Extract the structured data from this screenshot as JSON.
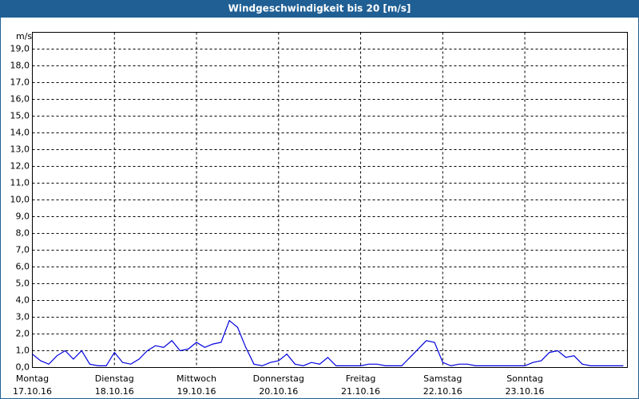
{
  "chart_data": {
    "type": "line",
    "title": "Windgeschwindigkeit bis 20 [m/s]",
    "y_label": "m/s",
    "x": [
      0,
      0.1,
      0.2,
      0.3,
      0.4,
      0.5,
      0.6,
      0.7,
      0.8,
      0.9,
      1,
      1.1,
      1.2,
      1.3,
      1.4,
      1.5,
      1.6,
      1.7,
      1.8,
      1.9,
      2,
      2.1,
      2.2,
      2.3,
      2.4,
      2.5,
      2.6,
      2.7,
      2.8,
      2.9,
      3,
      3.1,
      3.2,
      3.3,
      3.4,
      3.5,
      3.6,
      3.7,
      3.8,
      3.9,
      4,
      4.1,
      4.2,
      4.3,
      4.4,
      4.5,
      4.6,
      4.7,
      4.8,
      4.9,
      5,
      5.1,
      5.2,
      5.3,
      5.4,
      5.5,
      5.6,
      5.7,
      5.8,
      5.9,
      6,
      6.1,
      6.2,
      6.3,
      6.4,
      6.5,
      6.6,
      6.7,
      6.8,
      6.9,
      7,
      7.1,
      7.2
    ],
    "series": [
      {
        "color": "#0000e0",
        "values": [
          0.8,
          0.4,
          0.2,
          0.7,
          1.0,
          0.5,
          1.0,
          0.2,
          0.1,
          0.1,
          0.9,
          0.3,
          0.2,
          0.5,
          1.0,
          1.3,
          1.2,
          1.6,
          1.0,
          1.1,
          1.5,
          1.2,
          1.4,
          1.5,
          2.8,
          2.4,
          1.2,
          0.2,
          0.1,
          0.3,
          0.4,
          0.8,
          0.2,
          0.1,
          0.3,
          0.2,
          0.6,
          0.1,
          0.1,
          0.1,
          0.1,
          0.2,
          0.2,
          0.1,
          0.1,
          0.1,
          0.6,
          1.1,
          1.6,
          1.5,
          0.3,
          0.1,
          0.2,
          0.2,
          0.1,
          0.1,
          0.1,
          0.1,
          0.1,
          0.1,
          0.1,
          0.3,
          0.4,
          0.9,
          1.0,
          0.6,
          0.7,
          0.2,
          0.1,
          0.1,
          0.1,
          0.1,
          0.1
        ]
      }
    ],
    "xlim": [
      0,
      7.25
    ],
    "xticks": [
      {
        "value": 0,
        "label": "Montag",
        "date": "17.10.16"
      },
      {
        "value": 1,
        "label": "Dienstag",
        "date": "18.10.16"
      },
      {
        "value": 2,
        "label": "Mittwoch",
        "date": "19.10.16"
      },
      {
        "value": 3,
        "label": "Donnerstag",
        "date": "20.10.16"
      },
      {
        "value": 4,
        "label": "Freitag",
        "date": "21.10.16"
      },
      {
        "value": 5,
        "label": "Samstag",
        "date": "22.10.16"
      },
      {
        "value": 6,
        "label": "Sonntag",
        "date": "23.10.16"
      }
    ],
    "ylim": [
      0,
      20
    ],
    "yticks": [
      {
        "value": 0,
        "label": "0,0"
      },
      {
        "value": 1,
        "label": "1,0"
      },
      {
        "value": 2,
        "label": "2,0"
      },
      {
        "value": 3,
        "label": "3,0"
      },
      {
        "value": 4,
        "label": "4,0"
      },
      {
        "value": 5,
        "label": "5,0"
      },
      {
        "value": 6,
        "label": "6,0"
      },
      {
        "value": 7,
        "label": "7,0"
      },
      {
        "value": 8,
        "label": "8,0"
      },
      {
        "value": 9,
        "label": "9,0"
      },
      {
        "value": 10,
        "label": "10,0"
      },
      {
        "value": 11,
        "label": "11,0"
      },
      {
        "value": 12,
        "label": "12,0"
      },
      {
        "value": 13,
        "label": "13,0"
      },
      {
        "value": 14,
        "label": "14,0"
      },
      {
        "value": 15,
        "label": "15,0"
      },
      {
        "value": 16,
        "label": "16,0"
      },
      {
        "value": 17,
        "label": "17,0"
      },
      {
        "value": 18,
        "label": "18,0"
      },
      {
        "value": 19,
        "label": "19,0"
      }
    ],
    "grid": true
  }
}
